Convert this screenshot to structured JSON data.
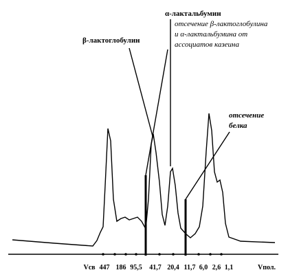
{
  "annotations": {
    "beta_lactoglobulin": "β-лактоглобулин",
    "alpha_lactalbumin": "α-лактальбумин",
    "cut_whey": [
      "отсечение β-лактоглобулина",
      "и  α-лактальбумина от",
      "ассоциатов казеина"
    ],
    "cut_protein": [
      "отсечение",
      "белка"
    ]
  },
  "axis": {
    "labels": [
      "Vсв",
      "447",
      "186",
      "95,5",
      "41,7",
      "20,4",
      "11,7",
      "6,0",
      "2,6",
      "1,1",
      "Vпол."
    ]
  }
}
